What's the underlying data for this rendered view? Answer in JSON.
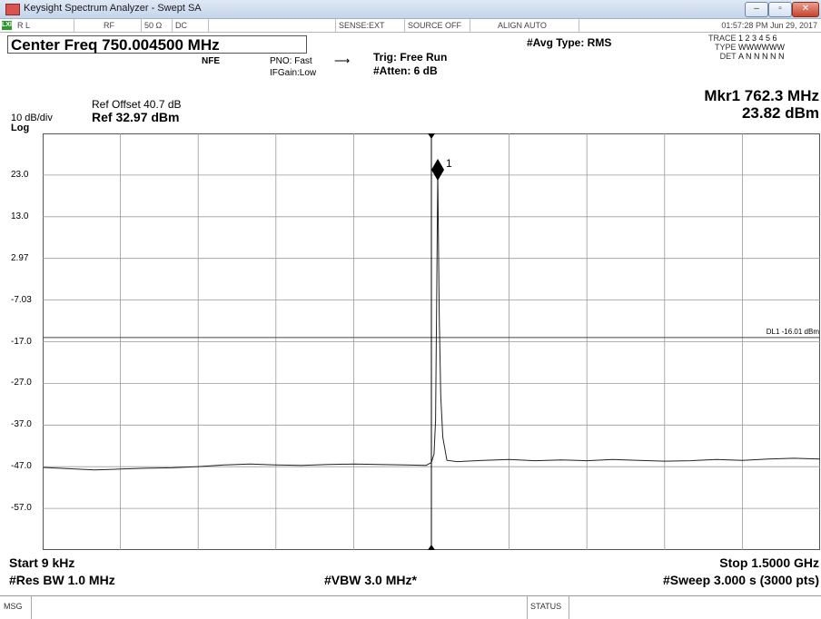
{
  "window": {
    "title": "Keysight Spectrum Analyzer - Swept SA",
    "controls": {
      "minimize": "–",
      "maximize": "▫",
      "close": "✕"
    }
  },
  "status_strip": {
    "rl": "R L",
    "rf": "RF",
    "impedance": "50 Ω",
    "coupling": "DC",
    "sense": "SENSE:EXT",
    "source": "SOURCE OFF",
    "align": "ALIGN AUTO",
    "datetime": "01:57:28 PM Jun 29, 2017"
  },
  "info": {
    "center_freq": "Center Freq 750.004500 MHz",
    "nfe": "NFE",
    "pno": "PNO: Fast",
    "ifgain": "IFGain:Low",
    "trig": "Trig: Free Run",
    "atten": "#Atten: 6 dB",
    "avg_type": "#Avg Type: RMS",
    "trace_label": "TRACE",
    "trace_value": "1 2 3 4 5 6",
    "type_label": "TYPE",
    "type_value": "WWWWWW",
    "det_label": "DET",
    "det_value": "A N N N N N"
  },
  "ref": {
    "offset": "Ref Offset 40.7 dB",
    "scale": "10 dB/div",
    "level": "Ref 32.97 dBm",
    "mode": "Log"
  },
  "marker": {
    "freq": "Mkr1 762.3 MHz",
    "amp": "23.82 dBm",
    "label": "1"
  },
  "display_line": {
    "label": "DL1 -16.01 dBm",
    "level": -16.01
  },
  "y_ticks": [
    "23.0",
    "13.0",
    "2.97",
    "-7.03",
    "-17.0",
    "-27.0",
    "-37.0",
    "-47.0",
    "-57.0"
  ],
  "bottom": {
    "start": "Start 9 kHz",
    "stop": "Stop 1.5000 GHz",
    "rbw": "#Res BW 1.0 MHz",
    "vbw": "#VBW 3.0 MHz*",
    "sweep": "#Sweep  3.000 s (3000 pts)",
    "msg": "MSG",
    "status": "STATUS"
  },
  "chart_data": {
    "type": "line",
    "xlabel": "",
    "ylabel": "",
    "xlim": [
      0.009,
      1500
    ],
    "ylim": [
      -67.03,
      32.97
    ],
    "x_unit": "MHz",
    "y_unit": "dBm",
    "grid": true,
    "series": [
      {
        "x": [
          0.009,
          50,
          100,
          150,
          200,
          250,
          300,
          350,
          400,
          450,
          500,
          550,
          600,
          650,
          700,
          740,
          750,
          755,
          758,
          760,
          762.3,
          765,
          768,
          772,
          780,
          800,
          850,
          900,
          950,
          1000,
          1050,
          1100,
          1150,
          1200,
          1250,
          1300,
          1350,
          1400,
          1450,
          1500
        ],
        "y": [
          -47.2,
          -47.5,
          -47.8,
          -47.6,
          -47.4,
          -47.3,
          -47.0,
          -46.6,
          -46.4,
          -46.6,
          -46.7,
          -46.5,
          -46.4,
          -46.5,
          -46.6,
          -46.7,
          -46.0,
          -44.0,
          -36.0,
          -10.0,
          23.82,
          -10.0,
          -30.0,
          -40.0,
          -45.5,
          -45.8,
          -45.5,
          -45.3,
          -45.6,
          -45.4,
          -45.6,
          -45.3,
          -45.5,
          -45.7,
          -45.6,
          -45.3,
          -45.5,
          -45.2,
          -45.0,
          -45.2
        ]
      }
    ]
  }
}
